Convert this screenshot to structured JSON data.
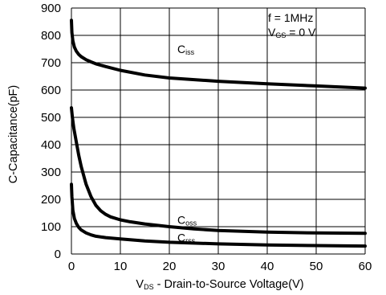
{
  "chart_data": {
    "type": "line",
    "title": "",
    "xlabel": {
      "main": "V",
      "sub": "DS",
      "rest": " - Drain-to-Source Voltage(V)"
    },
    "ylabel": "C-Capacitance(pF)",
    "xlim": [
      0,
      60
    ],
    "ylim": [
      0,
      900
    ],
    "x_ticks": [
      0,
      10,
      20,
      30,
      40,
      50,
      60
    ],
    "y_ticks": [
      0,
      100,
      200,
      300,
      400,
      500,
      600,
      700,
      800,
      900
    ],
    "grid": true,
    "conditions": [
      {
        "main": "f  =  1MHz",
        "sub": "",
        "rest": ""
      },
      {
        "main": "V",
        "sub": "GS",
        "rest": " = 0 V"
      }
    ],
    "series": [
      {
        "name": {
          "main": "C",
          "sub": "iss"
        },
        "label_at": [
          20,
          735
        ],
        "x": [
          0,
          0.1,
          0.3,
          0.6,
          1,
          1.5,
          2,
          3,
          4,
          5,
          7,
          10,
          15,
          20,
          30,
          40,
          50,
          60
        ],
        "y": [
          855,
          810,
          780,
          757,
          742,
          730,
          722,
          711,
          703,
          696,
          686,
          672,
          655,
          644,
          632,
          623,
          615,
          607
        ]
      },
      {
        "name": {
          "main": "C",
          "sub": "oss"
        },
        "label_at": [
          20,
          110
        ],
        "x": [
          0,
          0.2,
          0.5,
          1,
          1.5,
          2,
          3,
          4,
          5,
          6,
          7,
          8,
          10,
          12,
          15,
          20,
          25,
          30,
          40,
          50,
          60
        ],
        "y": [
          535,
          500,
          460,
          410,
          360,
          320,
          255,
          210,
          178,
          158,
          145,
          136,
          125,
          118,
          110,
          100,
          92,
          86,
          80,
          77,
          76
        ]
      },
      {
        "name": {
          "main": "C",
          "sub": "rss"
        },
        "label_at": [
          20,
          45
        ],
        "x": [
          0,
          0.1,
          0.3,
          0.6,
          1,
          1.5,
          2,
          3,
          4,
          5,
          7,
          10,
          15,
          20,
          30,
          40,
          50,
          60
        ],
        "y": [
          255,
          210,
          160,
          130,
          112,
          97,
          88,
          77,
          70,
          65,
          60,
          55,
          48,
          43,
          37,
          33,
          31,
          29
        ]
      }
    ]
  }
}
